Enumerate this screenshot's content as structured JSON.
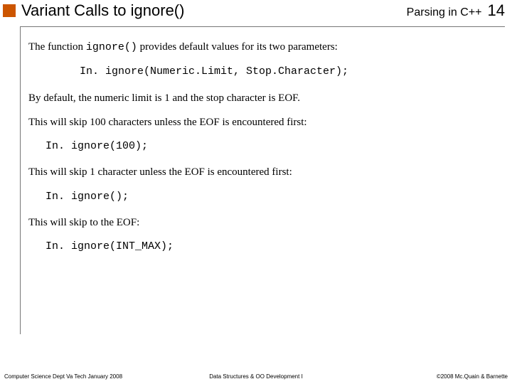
{
  "header": {
    "title": "Variant Calls to ignore()",
    "section": "Parsing in C++",
    "page_number": "14",
    "accent_color": "#cc5500"
  },
  "body": {
    "p1_prefix": "The function ",
    "p1_code": "ignore()",
    "p1_suffix": " provides default values for its two parameters:",
    "code1": "In. ignore(Numeric.Limit, Stop.Character);",
    "p2": "By default, the numeric limit is 1 and the stop character is EOF.",
    "p3": "This will skip 100 characters unless the EOF is encountered first:",
    "code2": "In. ignore(100);",
    "p4": "This will skip 1 character unless the EOF is encountered first:",
    "code3": "In. ignore();",
    "p5": "This will skip to the EOF:",
    "code4": "In. ignore(INT_MAX);"
  },
  "footer": {
    "left": "Computer Science Dept Va Tech January 2008",
    "center": "Data Structures & OO Development I",
    "right": "©2008  Mc.Quain & Barnette"
  }
}
